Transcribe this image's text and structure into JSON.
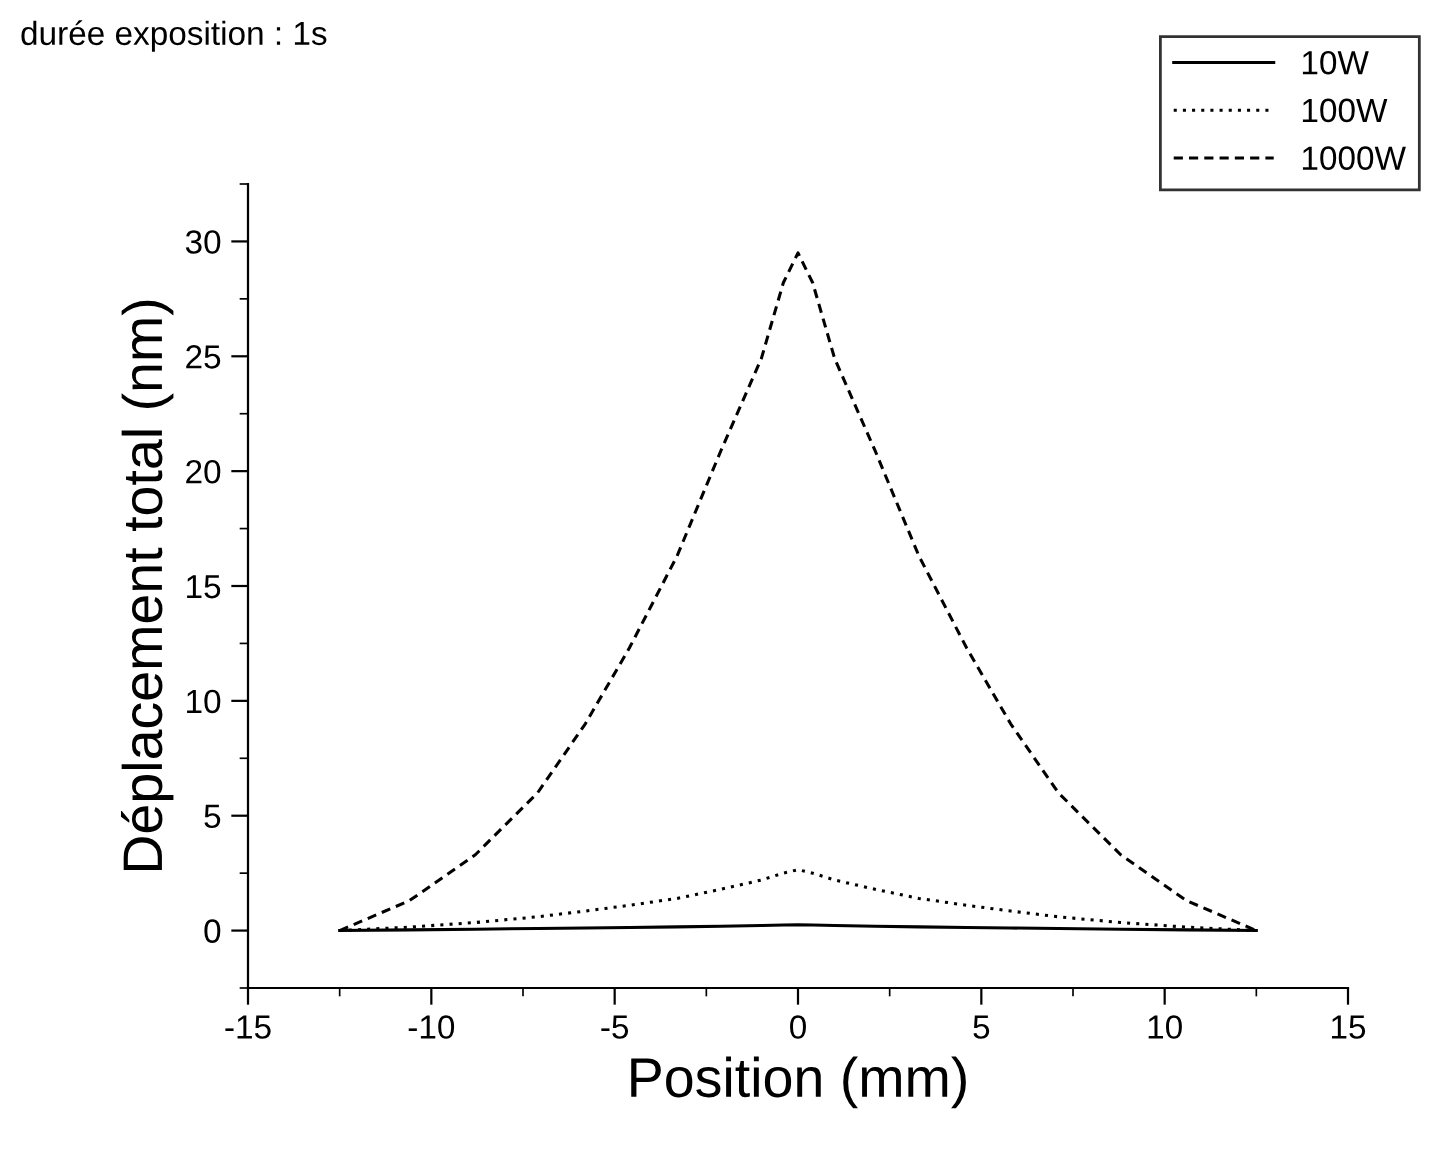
{
  "chart_data": {
    "type": "line",
    "title": "durée exposition : 1s",
    "xlabel": "Position (mm)",
    "ylabel": "Déplacement total (nm)",
    "x": [
      -12.5,
      -10.6,
      -8.8,
      -7.1,
      -5.8,
      -4.6,
      -3.3,
      -2.1,
      -1.0,
      -0.4,
      0,
      0.4,
      1.0,
      2.1,
      3.3,
      4.6,
      5.8,
      7.1,
      8.8,
      10.6,
      12.5
    ],
    "series": [
      {
        "name": "10W",
        "color": "#000000",
        "line_style": "solid",
        "values": [
          0,
          0.03,
          0.06,
          0.09,
          0.11,
          0.13,
          0.16,
          0.19,
          0.22,
          0.24,
          0.25,
          0.24,
          0.22,
          0.19,
          0.16,
          0.13,
          0.11,
          0.09,
          0.06,
          0.03,
          0
        ]
      },
      {
        "name": "100W",
        "color": "#000000",
        "line_style": "dotted",
        "values": [
          0,
          0.15,
          0.35,
          0.6,
          0.85,
          1.1,
          1.4,
          1.8,
          2.2,
          2.5,
          2.65,
          2.5,
          2.2,
          1.8,
          1.4,
          1.1,
          0.85,
          0.6,
          0.35,
          0.15,
          0
        ]
      },
      {
        "name": "1000W",
        "color": "#000000",
        "line_style": "dashed",
        "values": [
          0,
          1.3,
          3.3,
          6.0,
          9.0,
          12.3,
          16.3,
          20.9,
          24.9,
          28.2,
          29.5,
          28.2,
          24.9,
          20.9,
          16.3,
          12.3,
          9.0,
          6.0,
          3.3,
          1.3,
          0
        ]
      }
    ],
    "xlim": [
      -15,
      15
    ],
    "xticks": [
      -15,
      -10,
      -5,
      0,
      5,
      10,
      15
    ],
    "ylim": [
      -2.5,
      32.5
    ],
    "yticks": [
      0,
      5,
      10,
      15,
      20,
      25,
      30
    ],
    "grid": false,
    "legend": "top right"
  }
}
